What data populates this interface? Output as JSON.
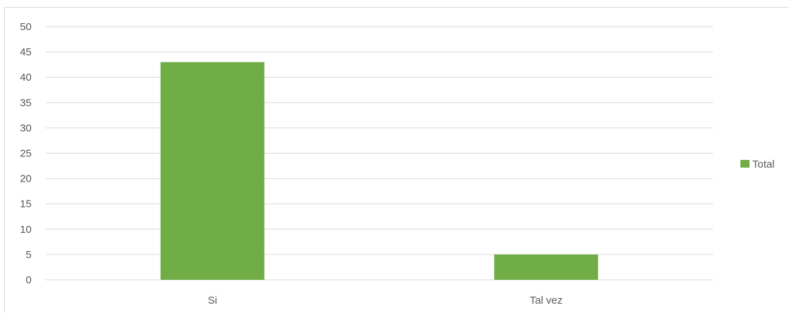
{
  "chart_data": {
    "type": "bar",
    "categories": [
      "Si",
      "Tal vez"
    ],
    "series": [
      {
        "name": "Total",
        "values": [
          43,
          5
        ]
      }
    ],
    "ylim": [
      0,
      50
    ],
    "yticks": [
      "0",
      "5",
      "10",
      "15",
      "20",
      "25",
      "30",
      "35",
      "40",
      "45",
      "50"
    ],
    "grid": true,
    "legend_position": "right",
    "colors": {
      "bar": "#70ad47",
      "grid": "#d9d9d9",
      "text": "#595959"
    }
  }
}
